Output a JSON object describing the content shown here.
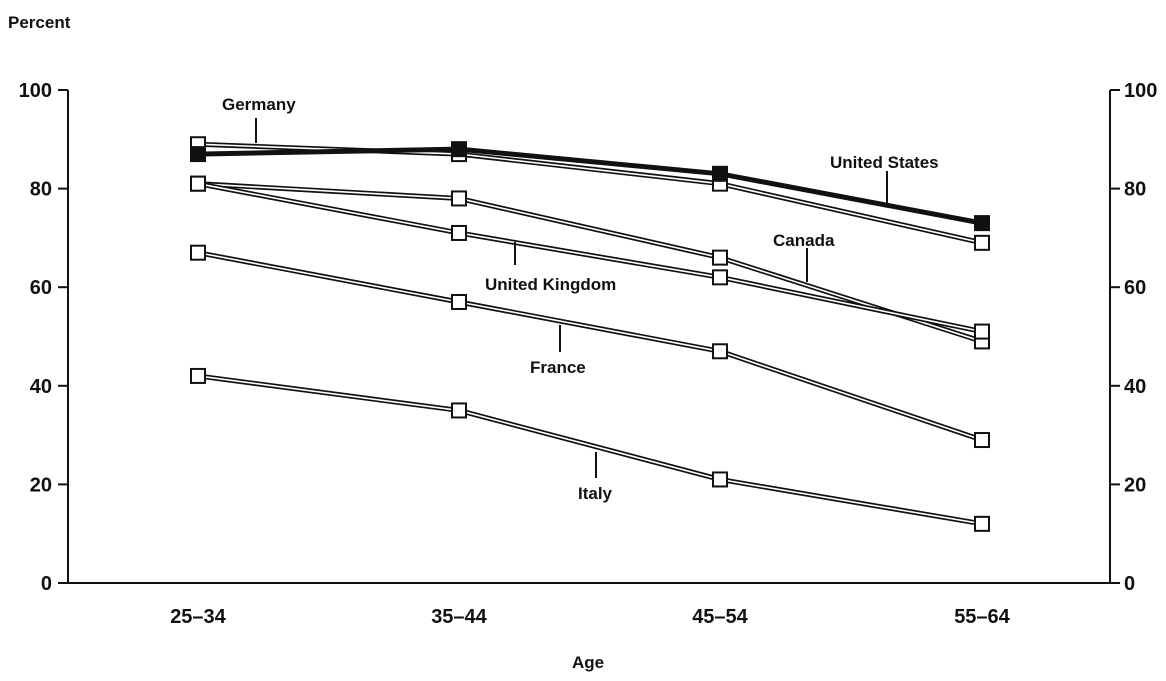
{
  "chart_data": {
    "type": "line",
    "title": "",
    "ylabel": "Percent",
    "xlabel": "Age",
    "categories": [
      "25–34",
      "35–44",
      "45–54",
      "55–64"
    ],
    "ylim": [
      0,
      100
    ],
    "yticks": [
      0,
      20,
      40,
      60,
      80,
      100
    ],
    "grid": false,
    "legend": "direct labels",
    "series": [
      {
        "name": "Germany",
        "values": [
          89,
          87,
          81,
          69
        ],
        "color": "#ffffff",
        "marker": "hollow-square"
      },
      {
        "name": "United States",
        "values": [
          87,
          88,
          83,
          73
        ],
        "color": "#111111",
        "marker": "filled-square"
      },
      {
        "name": "Canada",
        "values": [
          81,
          78,
          66,
          49
        ],
        "color": "#ffffff",
        "marker": "hollow-square"
      },
      {
        "name": "United Kingdom",
        "values": [
          81,
          71,
          62,
          51
        ],
        "color": "#ffffff",
        "marker": "hollow-square"
      },
      {
        "name": "France",
        "values": [
          67,
          57,
          47,
          29
        ],
        "color": "#ffffff",
        "marker": "hollow-square"
      },
      {
        "name": "Italy",
        "values": [
          42,
          35,
          21,
          12
        ],
        "color": "#ffffff",
        "marker": "hollow-square"
      }
    ]
  }
}
